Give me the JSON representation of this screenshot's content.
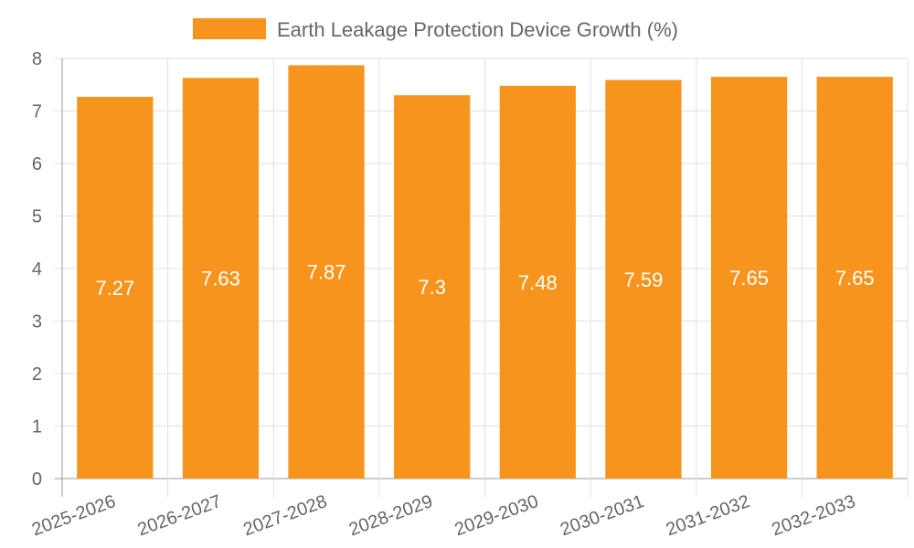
{
  "chart_data": {
    "type": "bar",
    "categories": [
      "2025-2026",
      "2026-2027",
      "2027-2028",
      "2028-2029",
      "2029-2030",
      "2030-2031",
      "2031-2032",
      "2032-2033"
    ],
    "series": [
      {
        "name": "Earth Leakage Protection Device Growth (%)",
        "values": [
          7.27,
          7.63,
          7.87,
          7.3,
          7.48,
          7.59,
          7.65,
          7.65
        ],
        "color": "#f7941d"
      }
    ],
    "ylim": [
      0,
      8
    ],
    "yticks": [
      0,
      1,
      2,
      3,
      4,
      5,
      6,
      7,
      8
    ],
    "grid": true,
    "legend_position": "top-center",
    "data_labels": true
  }
}
